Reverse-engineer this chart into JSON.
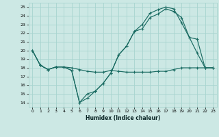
{
  "xlabel": "Humidex (Indice chaleur)",
  "background_color": "#cce8e4",
  "grid_color": "#a8d4cf",
  "line_color": "#1a6b62",
  "xlim": [
    -0.5,
    23.5
  ],
  "ylim": [
    13.5,
    25.5
  ],
  "xticks": [
    0,
    1,
    2,
    3,
    4,
    5,
    6,
    7,
    8,
    9,
    10,
    11,
    12,
    13,
    14,
    15,
    16,
    17,
    18,
    19,
    20,
    21,
    22,
    23
  ],
  "yticks": [
    14,
    15,
    16,
    17,
    18,
    19,
    20,
    21,
    22,
    23,
    24,
    25
  ],
  "series1_x": [
    0,
    1,
    2,
    3,
    4,
    5,
    6,
    7,
    8,
    9,
    10,
    11,
    12,
    13,
    14,
    15,
    16,
    17,
    18,
    19,
    20,
    21,
    22,
    23
  ],
  "series1_y": [
    20,
    18.3,
    17.8,
    18.1,
    18.1,
    18.0,
    17.8,
    17.6,
    17.5,
    17.5,
    17.7,
    17.6,
    17.5,
    17.5,
    17.5,
    17.5,
    17.6,
    17.6,
    17.8,
    18.0,
    18.0,
    18.0,
    18.0,
    18.0
  ],
  "series2_x": [
    0,
    1,
    2,
    3,
    4,
    5,
    6,
    7,
    8,
    9,
    10,
    11,
    12,
    13,
    14,
    15,
    16,
    17,
    18,
    19,
    20,
    21,
    22,
    23
  ],
  "series2_y": [
    20,
    18.3,
    17.8,
    18.1,
    18.1,
    17.7,
    14.0,
    15.0,
    15.3,
    16.2,
    17.4,
    19.5,
    20.5,
    22.2,
    22.5,
    23.8,
    24.2,
    24.8,
    24.5,
    23.8,
    21.5,
    19.7,
    18.0,
    18.0
  ],
  "series3_x": [
    0,
    1,
    2,
    3,
    4,
    5,
    6,
    7,
    8,
    9,
    10,
    11,
    12,
    13,
    14,
    15,
    16,
    17,
    18,
    19,
    20,
    21,
    22,
    23
  ],
  "series3_y": [
    20,
    18.3,
    17.8,
    18.1,
    18.1,
    17.7,
    14.0,
    14.5,
    15.3,
    16.2,
    17.4,
    19.5,
    20.5,
    22.2,
    23.0,
    24.3,
    24.7,
    25.0,
    24.8,
    23.2,
    21.5,
    21.3,
    18.0,
    18.0
  ]
}
